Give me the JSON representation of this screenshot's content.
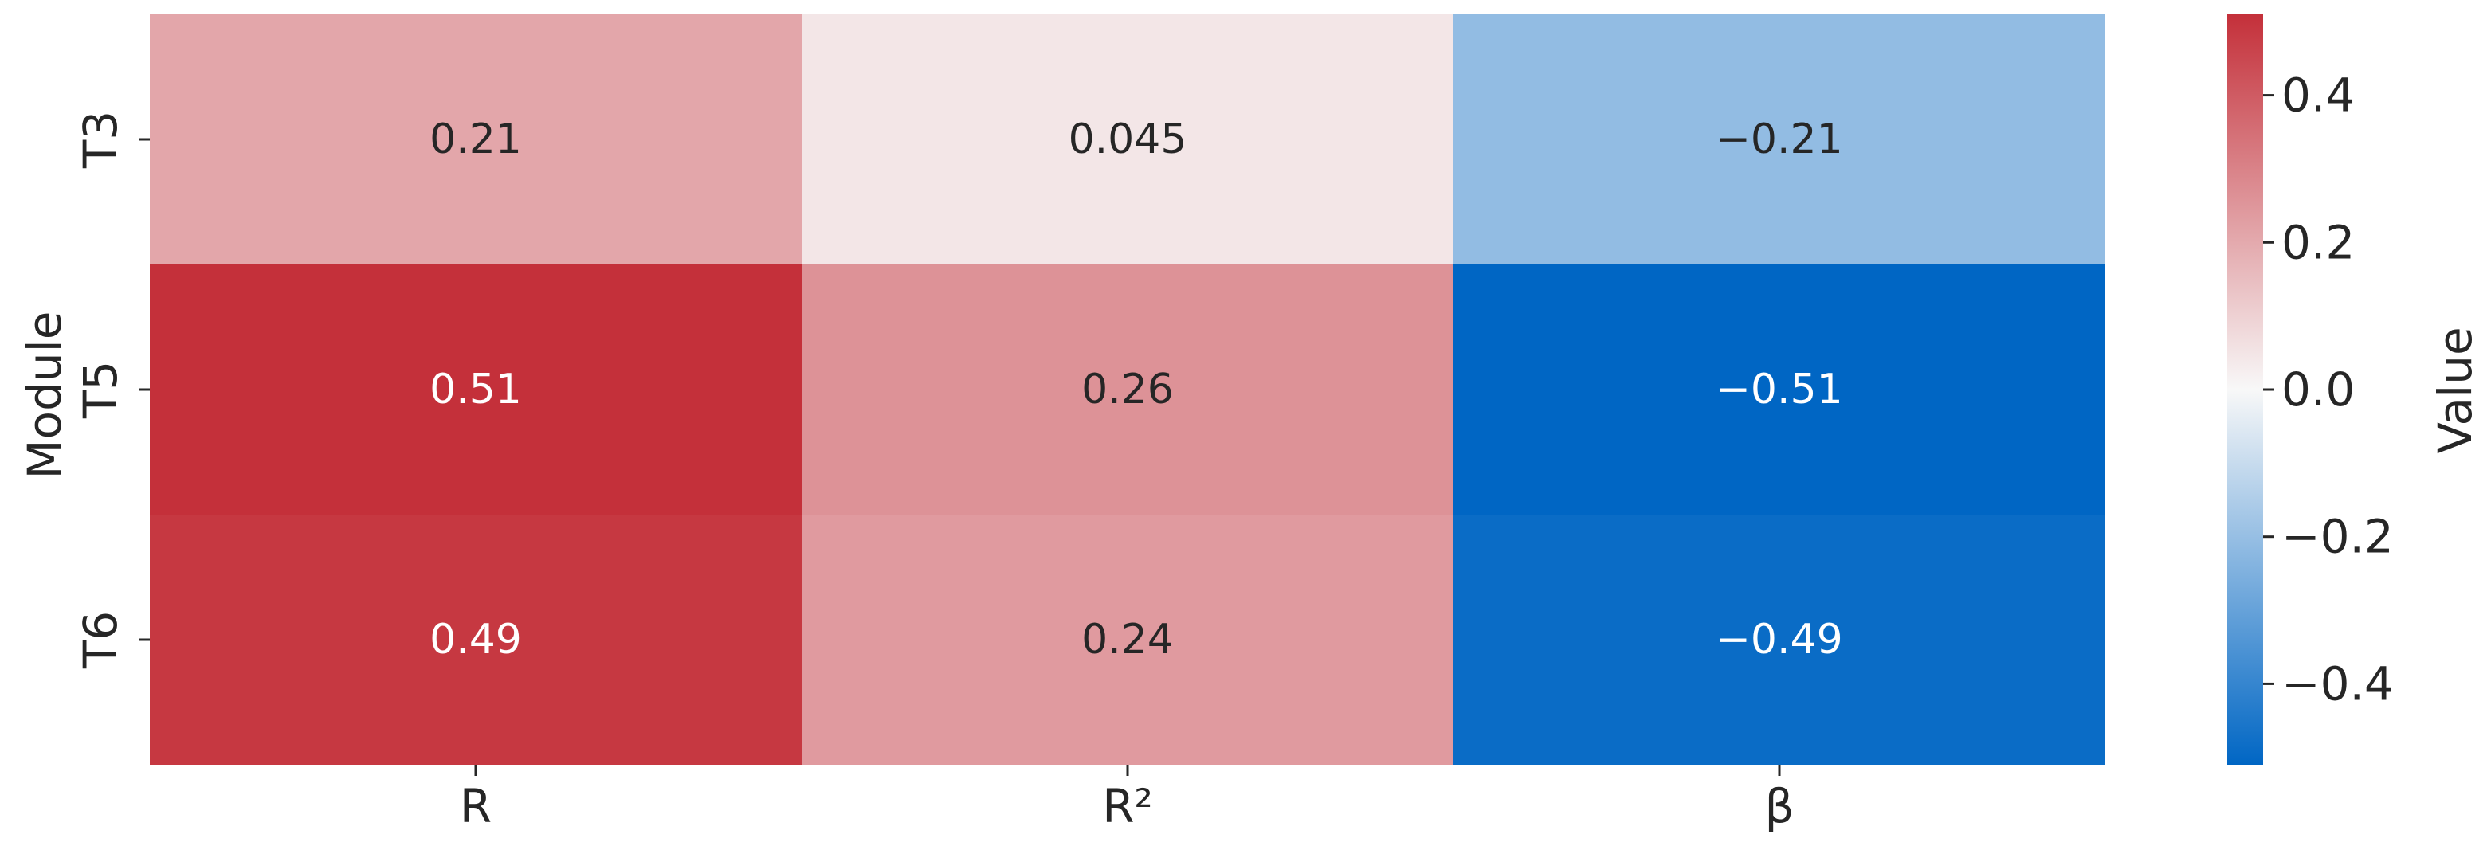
{
  "chart_data": {
    "type": "heatmap",
    "ylabel": "Module",
    "xlabel": "",
    "rows": [
      "T3",
      "T5",
      "T6"
    ],
    "columns": [
      "R",
      "R²",
      "β"
    ],
    "values": [
      [
        0.21,
        0.045,
        -0.21
      ],
      [
        0.51,
        0.26,
        -0.51
      ],
      [
        0.49,
        0.24,
        -0.49
      ]
    ],
    "cell_labels": [
      [
        "0.21",
        "0.045",
        "−0.21"
      ],
      [
        "0.51",
        "0.26",
        "−0.51"
      ],
      [
        "0.49",
        "0.24",
        "−0.49"
      ]
    ],
    "colorbar": {
      "label": "Value",
      "range": [
        -0.51,
        0.51
      ],
      "ticks": [
        0.4,
        0.2,
        0.0,
        -0.2,
        -0.4
      ],
      "tick_labels": [
        "0.4",
        "0.2",
        "0.0",
        "−0.2",
        "−0.4"
      ],
      "colormap": {
        "low": "#0066c4",
        "mid": "#f8f8f8",
        "high": "#c4303a"
      }
    },
    "grid": false
  }
}
